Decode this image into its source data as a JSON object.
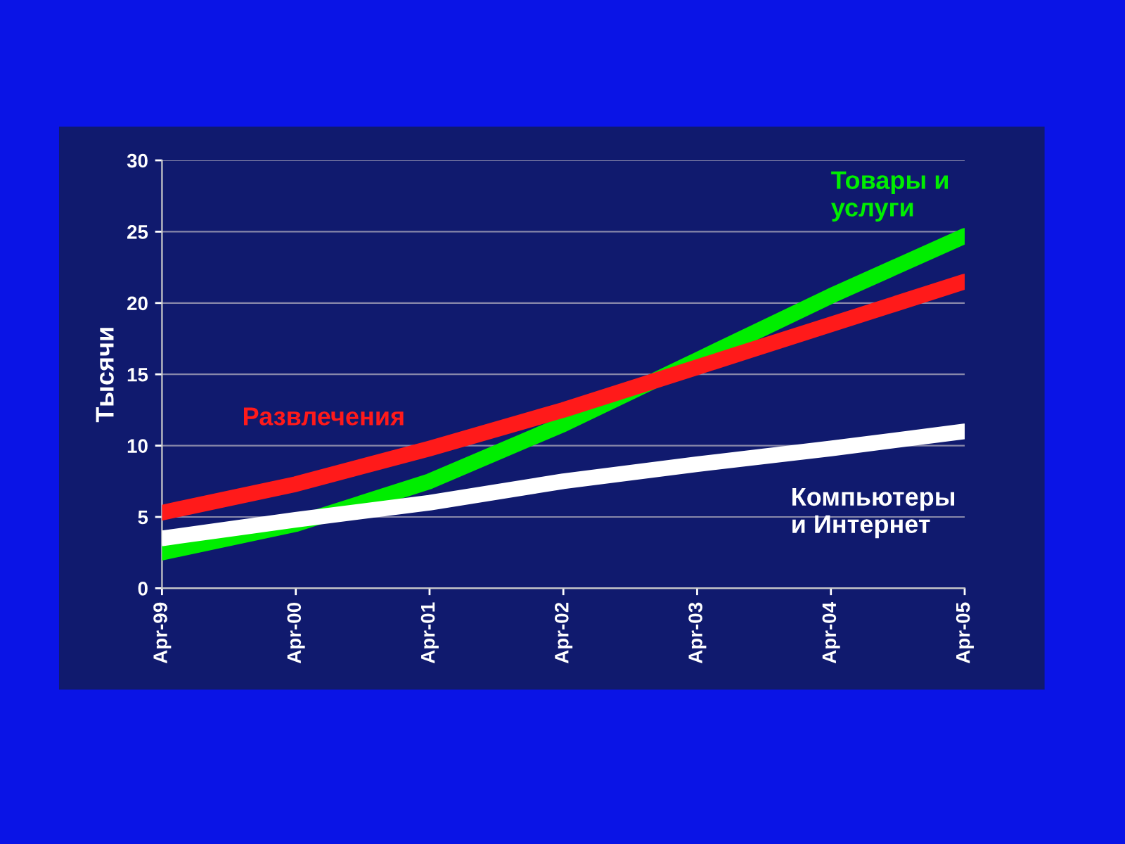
{
  "chart_data": {
    "type": "line",
    "ylabel": "Тысячи",
    "categories": [
      "Apr-99",
      "Apr-00",
      "Apr-01",
      "Apr-02",
      "Apr-03",
      "Apr-04",
      "Apr-05"
    ],
    "series": [
      {
        "name": "Товары и\nуслуги",
        "color": "#00ee00",
        "values": [
          2.5,
          4.5,
          7.5,
          11.5,
          16,
          20.5,
          24.7
        ]
      },
      {
        "name": "Развлечения",
        "color": "#ff1a1a",
        "values": [
          5.3,
          7.3,
          9.8,
          12.5,
          15.5,
          18.5,
          21.5
        ]
      },
      {
        "name": "Компьютеры\nи Интернет",
        "color": "#ffffff",
        "values": [
          3.5,
          4.8,
          6,
          7.5,
          8.7,
          9.8,
          11
        ]
      }
    ],
    "ylim": [
      0,
      30
    ],
    "yticks": [
      0,
      5,
      10,
      15,
      20,
      25,
      30
    ],
    "grid": "y",
    "legend": false,
    "marker": "none",
    "line_style": "solid"
  }
}
